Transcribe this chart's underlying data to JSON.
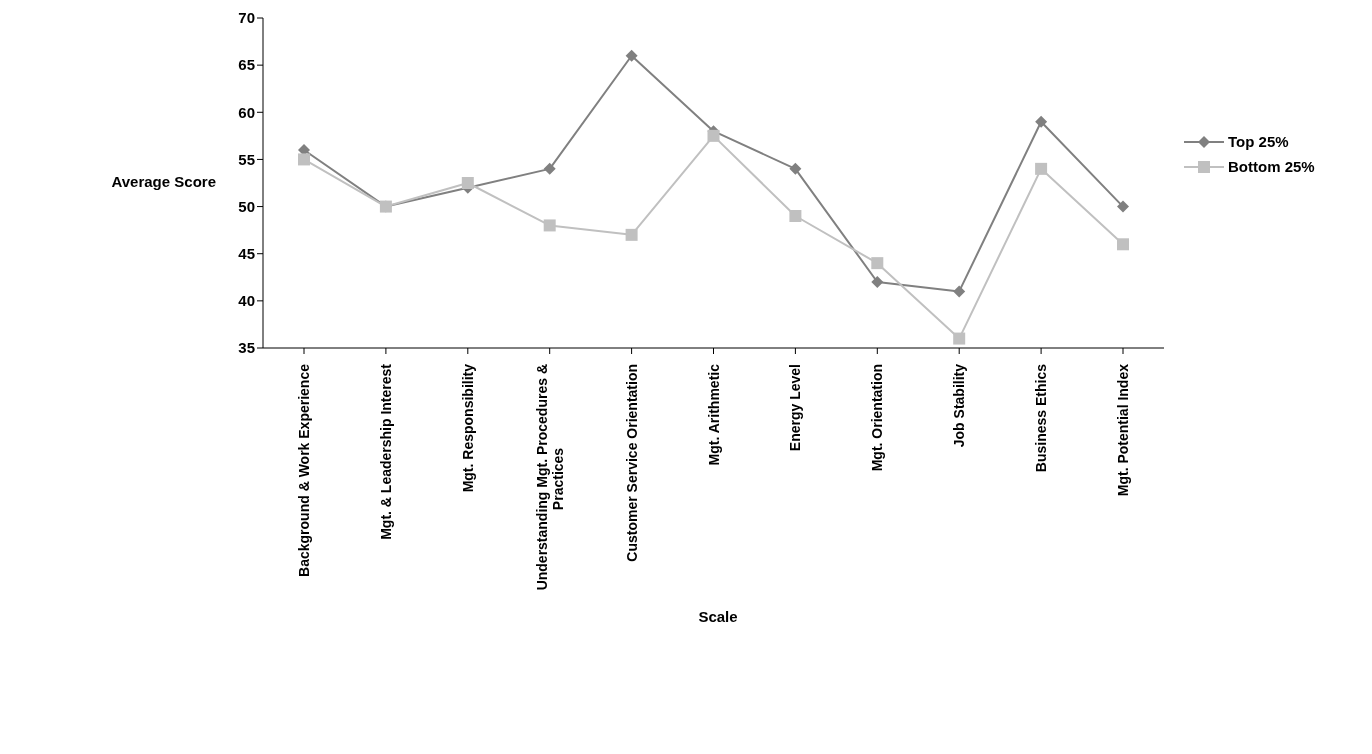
{
  "chart_data": {
    "type": "line",
    "xlabel": "Scale",
    "ylabel": "Average Score",
    "categories": [
      "Background & Work Experience",
      "Mgt. & Leadership Interest",
      "Mgt. Responsibility",
      "Understanding Mgt. Procedures & Practices",
      "Customer Service Orientation",
      "Mgt. Arithmetic",
      "Energy Level",
      "Mgt. Orientation",
      "Job Stability",
      "Business Ethics",
      "Mgt. Potential Index"
    ],
    "series": [
      {
        "name": "Top 25%",
        "color": "#808080",
        "marker": "diamond",
        "values": [
          56,
          50,
          52,
          54,
          66,
          58,
          54,
          42,
          41,
          59,
          50
        ]
      },
      {
        "name": "Bottom 25%",
        "color": "#c0c0c0",
        "marker": "square",
        "values": [
          55,
          50,
          52.5,
          48,
          47,
          57.5,
          49,
          44,
          36,
          54,
          46
        ]
      }
    ],
    "ylim": [
      35,
      70
    ],
    "yticks": [
      35,
      40,
      45,
      50,
      55,
      60,
      65,
      70
    ],
    "grid": false,
    "legend": "right",
    "line_style": "solid"
  }
}
